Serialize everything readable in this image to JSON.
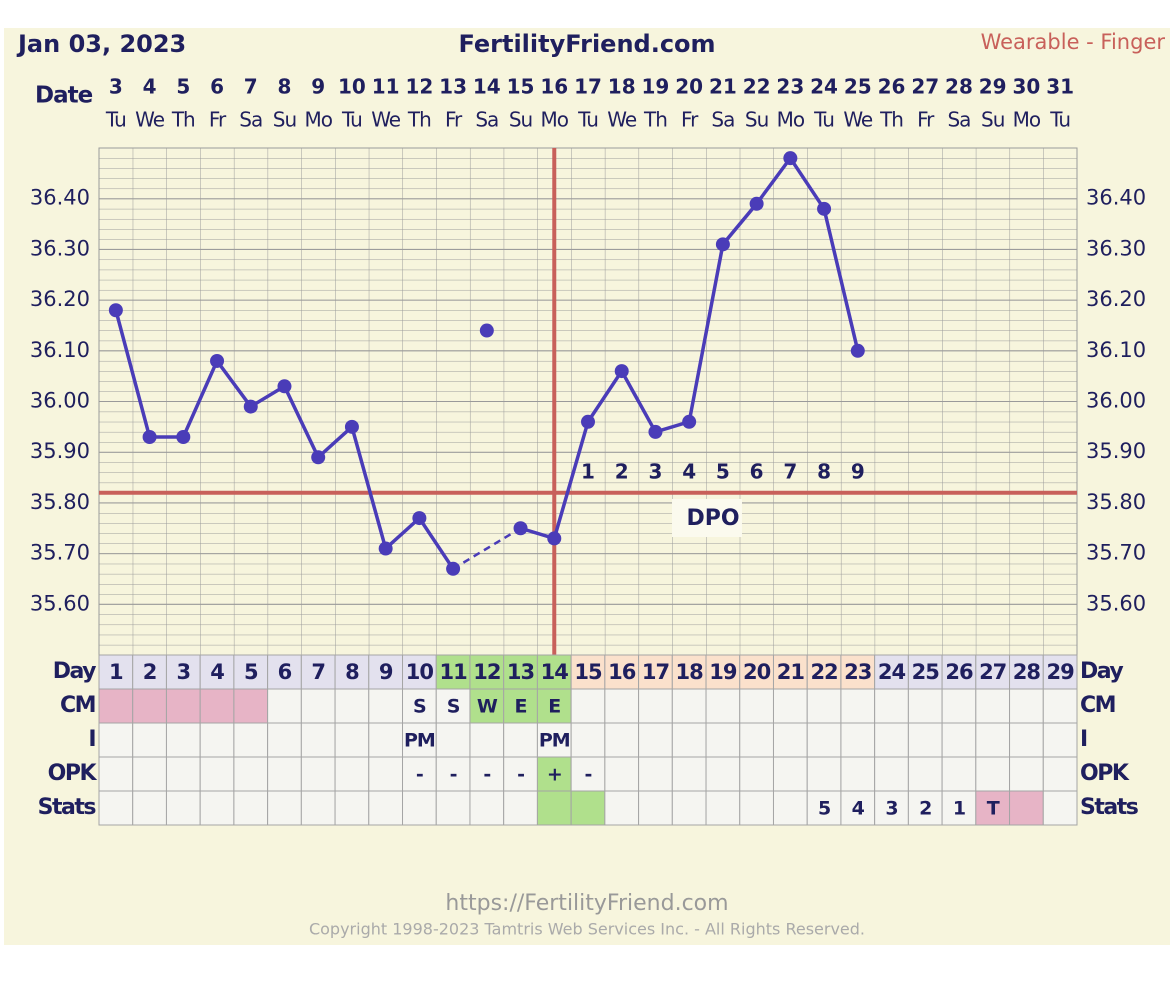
{
  "header": {
    "date": "Jan 03, 2023",
    "site": "FertilityFriend.com",
    "source": "Wearable - Finger"
  },
  "chart_data": {
    "type": "line",
    "x_label": "Date",
    "categories": [
      "3",
      "4",
      "5",
      "6",
      "7",
      "8",
      "9",
      "10",
      "11",
      "12",
      "13",
      "14",
      "15",
      "16",
      "17",
      "18",
      "19",
      "20",
      "21",
      "22",
      "23",
      "24",
      "25",
      "26",
      "27",
      "28",
      "29",
      "30",
      "31"
    ],
    "weekdays": [
      "Tu",
      "We",
      "Th",
      "Fr",
      "Sa",
      "Su",
      "Mo",
      "Tu",
      "We",
      "Th",
      "Fr",
      "Sa",
      "Su",
      "Mo",
      "Tu",
      "We",
      "Th",
      "Fr",
      "Sa",
      "Su",
      "Mo",
      "Tu",
      "We",
      "Th",
      "Fr",
      "Sa",
      "Su",
      "Mo",
      "Tu"
    ],
    "values": [
      36.18,
      35.93,
      35.93,
      36.08,
      35.99,
      36.03,
      35.89,
      35.95,
      35.71,
      35.77,
      35.67,
      null,
      35.75,
      35.73,
      35.96,
      36.06,
      35.94,
      35.96,
      36.31,
      36.39,
      36.48,
      36.38,
      36.1,
      null,
      null,
      null,
      null,
      null,
      null
    ],
    "excluded_values": [
      null,
      null,
      null,
      null,
      null,
      null,
      null,
      null,
      null,
      null,
      null,
      36.14,
      null,
      null,
      null,
      null,
      null,
      null,
      null,
      null,
      null,
      null,
      null,
      null,
      null,
      null,
      null,
      null,
      null
    ],
    "color": "#4a3cb8",
    "ylim": [
      35.5,
      36.5
    ],
    "yticks": [
      {
        "value": 35.6,
        "label": "35.60"
      },
      {
        "value": 35.7,
        "label": "35.70"
      },
      {
        "value": 35.8,
        "label": "35.80"
      },
      {
        "value": 35.9,
        "label": "35.90"
      },
      {
        "value": 36.0,
        "label": "36.00"
      },
      {
        "value": 36.1,
        "label": "36.10"
      },
      {
        "value": 36.2,
        "label": "36.20"
      },
      {
        "value": 36.3,
        "label": "36.30"
      },
      {
        "value": 36.4,
        "label": "36.40"
      }
    ],
    "coverline": 35.82,
    "ovulation_index": 13,
    "rule_color": "#c8605a",
    "dpo": [
      null,
      null,
      null,
      null,
      null,
      null,
      null,
      null,
      null,
      null,
      null,
      null,
      null,
      null,
      1,
      2,
      3,
      4,
      5,
      6,
      7,
      8,
      9,
      null,
      null,
      null,
      null,
      null,
      null
    ],
    "dpo_label": "DPO"
  },
  "table": {
    "row_labels": [
      "Day",
      "CM",
      "I",
      "OPK",
      "Stats"
    ],
    "rows": [
      [
        1,
        2,
        3,
        4,
        5,
        6,
        7,
        8,
        9,
        10,
        11,
        12,
        13,
        14,
        15,
        16,
        17,
        18,
        19,
        20,
        21,
        22,
        23,
        24,
        25,
        26,
        27,
        28,
        29
      ],
      [
        null,
        null,
        null,
        null,
        null,
        null,
        null,
        null,
        null,
        "S",
        "S",
        "W",
        "E",
        "E",
        null,
        null,
        null,
        null,
        null,
        null,
        null,
        null,
        null,
        null,
        null,
        null,
        null,
        null,
        null
      ],
      [
        null,
        null,
        null,
        null,
        null,
        null,
        null,
        null,
        null,
        "PM",
        null,
        null,
        null,
        "PM",
        null,
        null,
        null,
        null,
        null,
        null,
        null,
        null,
        null,
        null,
        null,
        null,
        null,
        null,
        null
      ],
      [
        null,
        null,
        null,
        null,
        null,
        null,
        null,
        null,
        null,
        "-",
        "-",
        "-",
        "-",
        "+",
        "-",
        null,
        null,
        null,
        null,
        null,
        null,
        null,
        null,
        null,
        null,
        null,
        null,
        null,
        null
      ],
      [
        null,
        null,
        null,
        null,
        null,
        null,
        null,
        null,
        null,
        null,
        null,
        null,
        null,
        null,
        null,
        null,
        null,
        null,
        null,
        null,
        null,
        5,
        4,
        3,
        2,
        1,
        "T",
        null,
        null
      ]
    ],
    "fills": [
      [
        "#e3e1ee",
        "#e3e1ee",
        "#e3e1ee",
        "#e3e1ee",
        "#e3e1ee",
        "#e3e1ee",
        "#e3e1ee",
        "#e3e1ee",
        "#e3e1ee",
        "#e3e1ee",
        "#b0e08c",
        "#b0e08c",
        "#b0e08c",
        "#b0e08c",
        "#fbe1cc",
        "#fbe1cc",
        "#fbe1cc",
        "#fbe1cc",
        "#fbe1cc",
        "#fbe1cc",
        "#fbe1cc",
        "#fbe1cc",
        "#fbe1cc",
        "#e3e1ee",
        "#e3e1ee",
        "#e3e1ee",
        "#e3e1ee",
        "#e3e1ee",
        "#e3e1ee"
      ],
      [
        "#e7b4c6",
        "#e7b4c6",
        "#e7b4c6",
        "#e7b4c6",
        "#e7b4c6",
        null,
        null,
        null,
        null,
        null,
        null,
        "#b0e08c",
        "#b0e08c",
        "#b0e08c",
        null,
        null,
        null,
        null,
        null,
        null,
        null,
        null,
        null,
        null,
        null,
        null,
        null,
        null,
        null
      ],
      [
        null,
        null,
        null,
        null,
        null,
        null,
        null,
        null,
        null,
        null,
        null,
        null,
        null,
        null,
        null,
        null,
        null,
        null,
        null,
        null,
        null,
        null,
        null,
        null,
        null,
        null,
        null,
        null,
        null
      ],
      [
        null,
        null,
        null,
        null,
        null,
        null,
        null,
        null,
        null,
        null,
        null,
        null,
        null,
        "#b0e08c",
        null,
        null,
        null,
        null,
        null,
        null,
        null,
        null,
        null,
        null,
        null,
        null,
        null,
        null,
        null
      ],
      [
        null,
        null,
        null,
        null,
        null,
        null,
        null,
        null,
        null,
        null,
        null,
        null,
        null,
        "#b0e08c",
        "#b0e08c",
        null,
        null,
        null,
        null,
        null,
        null,
        null,
        null,
        null,
        null,
        null,
        "#e7b4c6",
        "#e7b4c6",
        null
      ]
    ]
  },
  "footer": {
    "url": "https://FertilityFriend.com",
    "copyright": "Copyright 1998-2023 Tamtris Web Services Inc. - All Rights Reserved."
  }
}
